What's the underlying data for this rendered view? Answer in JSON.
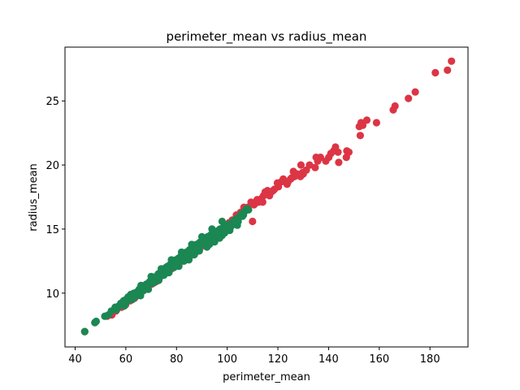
{
  "chart_data": {
    "type": "scatter",
    "title": "perimeter_mean vs radius_mean",
    "xlabel": "perimeter_mean",
    "ylabel": "radius_mean",
    "xlim": [
      36,
      195
    ],
    "ylim": [
      5.8,
      29.2
    ],
    "xticks": [
      40,
      60,
      80,
      100,
      120,
      140,
      160,
      180
    ],
    "yticks": [
      10,
      15,
      20,
      25
    ],
    "grid": false,
    "legend": "none",
    "colors": {
      "benign": "#1b8753",
      "malignant": "#dc3545"
    },
    "series": [
      {
        "color_key": "malignant",
        "points": [
          [
            188.5,
            28.1
          ],
          [
            186.9,
            27.4
          ],
          [
            182.1,
            27.2
          ],
          [
            174.2,
            25.7
          ],
          [
            171.5,
            25.2
          ],
          [
            166.2,
            24.6
          ],
          [
            165.5,
            24.3
          ],
          [
            158.9,
            23.3
          ],
          [
            155.1,
            23.5
          ],
          [
            152.8,
            23.3
          ],
          [
            152.1,
            23.0
          ],
          [
            153.5,
            23.1
          ],
          [
            152.5,
            22.3
          ],
          [
            147.2,
            21.1
          ],
          [
            147.0,
            20.6
          ],
          [
            143.7,
            21.0
          ],
          [
            142.0,
            21.1
          ],
          [
            140.9,
            20.9
          ],
          [
            142.7,
            21.4
          ],
          [
            140.1,
            20.6
          ],
          [
            138.9,
            20.3
          ],
          [
            136.8,
            20.6
          ],
          [
            135.7,
            20.3
          ],
          [
            134.7,
            19.8
          ],
          [
            135.1,
            20.6
          ],
          [
            132.5,
            20.0
          ],
          [
            131.2,
            19.6
          ],
          [
            130.0,
            19.3
          ],
          [
            129.7,
            19.4
          ],
          [
            128.9,
            19.1
          ],
          [
            127.6,
            19.3
          ],
          [
            126.6,
            19.1
          ],
          [
            125.5,
            19.0
          ],
          [
            125.0,
            18.9
          ],
          [
            124.0,
            18.7
          ],
          [
            123.6,
            18.5
          ],
          [
            122.1,
            18.9
          ],
          [
            121.4,
            18.7
          ],
          [
            120.2,
            18.3
          ],
          [
            119.8,
            18.6
          ],
          [
            118.6,
            18.1
          ],
          [
            117.4,
            17.9
          ],
          [
            116.7,
            17.6
          ],
          [
            115.9,
            18.0
          ],
          [
            115.0,
            17.9
          ],
          [
            114.3,
            17.6
          ],
          [
            113.6,
            17.4
          ],
          [
            112.4,
            17.1
          ],
          [
            111.8,
            17.3
          ],
          [
            111.0,
            17.0
          ],
          [
            110.6,
            16.9
          ],
          [
            109.4,
            17.1
          ],
          [
            108.2,
            16.7
          ],
          [
            107.3,
            16.5
          ],
          [
            106.6,
            16.7
          ],
          [
            105.3,
            16.3
          ],
          [
            104.9,
            16.0
          ],
          [
            103.6,
            16.1
          ],
          [
            110.0,
            15.6
          ],
          [
            144.0,
            20.2
          ],
          [
            148.0,
            21.0
          ],
          [
            129.1,
            20.0
          ],
          [
            126.1,
            19.5
          ],
          [
            118.1,
            18.0
          ],
          [
            114.0,
            17.1
          ],
          [
            102.0,
            15.7
          ],
          [
            100.8,
            15.5
          ],
          [
            99.3,
            15.3
          ],
          [
            97.6,
            14.9
          ],
          [
            96.2,
            14.8
          ],
          [
            94.7,
            14.5
          ],
          [
            93.9,
            14.2
          ],
          [
            92.8,
            14.0
          ],
          [
            91.4,
            13.9
          ],
          [
            90.2,
            13.7
          ],
          [
            89.2,
            13.5
          ],
          [
            88.6,
            13.6
          ],
          [
            87.7,
            13.2
          ],
          [
            86.6,
            13.1
          ],
          [
            85.3,
            12.9
          ],
          [
            84.1,
            12.8
          ],
          [
            82.5,
            12.5
          ],
          [
            81.2,
            12.4
          ],
          [
            80.0,
            12.2
          ],
          [
            78.1,
            11.9
          ],
          [
            76.4,
            11.6
          ],
          [
            75.0,
            11.5
          ],
          [
            73.3,
            11.2
          ],
          [
            71.9,
            10.9
          ],
          [
            70.2,
            10.7
          ],
          [
            68.5,
            10.4
          ],
          [
            66.9,
            10.2
          ],
          [
            65.0,
            9.9
          ],
          [
            63.4,
            9.6
          ],
          [
            61.7,
            9.4
          ],
          [
            59.9,
            9.1
          ],
          [
            58.3,
            8.9
          ],
          [
            56.1,
            8.6
          ],
          [
            54.5,
            8.3
          ],
          [
            52.6,
            8.2
          ],
          [
            47.8,
            7.7
          ],
          [
            43.8,
            7.0
          ]
        ]
      },
      {
        "color_key": "benign",
        "points": [
          [
            43.8,
            7.0
          ],
          [
            47.8,
            7.7
          ],
          [
            48.3,
            7.8
          ],
          [
            51.7,
            8.2
          ],
          [
            53.1,
            8.3
          ],
          [
            54.3,
            8.6
          ],
          [
            55.8,
            8.9
          ],
          [
            56.4,
            8.7
          ],
          [
            57.3,
            9.0
          ],
          [
            58.3,
            9.1
          ],
          [
            59.1,
            9.4
          ],
          [
            59.4,
            9.0
          ],
          [
            60.3,
            9.3
          ],
          [
            60.9,
            9.7
          ],
          [
            61.6,
            9.6
          ],
          [
            62.2,
            9.8
          ],
          [
            62.5,
            9.5
          ],
          [
            63.2,
            10.0
          ],
          [
            63.8,
            9.9
          ],
          [
            64.4,
            10.1
          ],
          [
            64.7,
            9.8
          ],
          [
            65.3,
            10.3
          ],
          [
            65.9,
            10.2
          ],
          [
            66.5,
            10.4
          ],
          [
            67.0,
            10.3
          ],
          [
            67.4,
            10.6
          ],
          [
            68.1,
            10.7
          ],
          [
            68.5,
            10.5
          ],
          [
            69.0,
            10.8
          ],
          [
            69.4,
            10.9
          ],
          [
            70.0,
            11.0
          ],
          [
            70.5,
            10.8
          ],
          [
            71.0,
            11.2
          ],
          [
            71.4,
            11.1
          ],
          [
            71.9,
            11.3
          ],
          [
            72.3,
            11.1
          ],
          [
            72.8,
            11.5
          ],
          [
            73.2,
            11.4
          ],
          [
            73.6,
            11.6
          ],
          [
            74.0,
            11.7
          ],
          [
            74.4,
            11.5
          ],
          [
            74.9,
            11.8
          ],
          [
            75.3,
            11.7
          ],
          [
            75.8,
            12.0
          ],
          [
            76.1,
            11.9
          ],
          [
            76.5,
            12.1
          ],
          [
            76.9,
            12.0
          ],
          [
            77.4,
            12.2
          ],
          [
            77.8,
            12.3
          ],
          [
            78.1,
            12.1
          ],
          [
            78.5,
            12.4
          ],
          [
            78.9,
            12.3
          ],
          [
            79.4,
            12.5
          ],
          [
            79.8,
            12.6
          ],
          [
            80.2,
            12.4
          ],
          [
            80.6,
            12.7
          ],
          [
            81.0,
            12.6
          ],
          [
            81.4,
            12.8
          ],
          [
            81.8,
            12.9
          ],
          [
            82.2,
            12.7
          ],
          [
            82.6,
            13.0
          ],
          [
            83.0,
            12.9
          ],
          [
            83.4,
            13.1
          ],
          [
            83.9,
            13.2
          ],
          [
            84.3,
            13.0
          ],
          [
            84.8,
            13.3
          ],
          [
            85.2,
            13.4
          ],
          [
            85.7,
            13.2
          ],
          [
            86.1,
            13.5
          ],
          [
            86.6,
            13.6
          ],
          [
            87.0,
            13.4
          ],
          [
            87.5,
            13.7
          ],
          [
            87.9,
            13.8
          ],
          [
            88.4,
            13.6
          ],
          [
            88.9,
            13.9
          ],
          [
            89.4,
            14.0
          ],
          [
            89.9,
            13.8
          ],
          [
            90.4,
            14.1
          ],
          [
            90.8,
            14.2
          ],
          [
            91.3,
            14.0
          ],
          [
            91.8,
            14.3
          ],
          [
            92.3,
            14.4
          ],
          [
            92.8,
            14.2
          ],
          [
            93.3,
            14.5
          ],
          [
            93.8,
            14.6
          ],
          [
            94.4,
            14.4
          ],
          [
            94.9,
            14.7
          ],
          [
            95.5,
            14.8
          ],
          [
            96.0,
            14.6
          ],
          [
            96.6,
            14.9
          ],
          [
            97.2,
            15.0
          ],
          [
            97.8,
            14.8
          ],
          [
            98.4,
            15.1
          ],
          [
            99.0,
            15.2
          ],
          [
            99.6,
            15.0
          ],
          [
            100.2,
            15.3
          ],
          [
            100.9,
            15.4
          ],
          [
            101.5,
            15.2
          ],
          [
            102.2,
            15.5
          ],
          [
            102.9,
            15.7
          ],
          [
            103.6,
            15.8
          ],
          [
            104.3,
            15.6
          ],
          [
            105.0,
            16.0
          ],
          [
            105.7,
            16.2
          ],
          [
            106.4,
            16.1
          ],
          [
            107.0,
            16.4
          ],
          [
            107.8,
            16.6
          ],
          [
            108.4,
            16.5
          ],
          [
            65.8,
            9.8
          ],
          [
            68.9,
            10.3
          ],
          [
            73.0,
            11.0
          ],
          [
            77.0,
            11.6
          ],
          [
            80.9,
            12.1
          ],
          [
            84.9,
            12.6
          ],
          [
            89.0,
            13.3
          ],
          [
            92.0,
            13.6
          ],
          [
            95.1,
            14.2
          ],
          [
            98.0,
            14.5
          ],
          [
            101.0,
            14.9
          ],
          [
            104.0,
            15.3
          ],
          [
            62.0,
            9.9
          ],
          [
            66.0,
            10.6
          ],
          [
            70.0,
            11.3
          ],
          [
            74.0,
            11.9
          ],
          [
            78.0,
            12.6
          ],
          [
            82.0,
            13.2
          ],
          [
            86.0,
            13.8
          ],
          [
            90.0,
            14.4
          ],
          [
            94.0,
            15.0
          ],
          [
            98.0,
            15.6
          ],
          [
            58.0,
            9.2
          ],
          [
            60.0,
            9.5
          ],
          [
            64.0,
            10.0
          ],
          [
            68.0,
            10.6
          ],
          [
            72.0,
            11.2
          ],
          [
            76.0,
            11.8
          ],
          [
            80.0,
            12.4
          ],
          [
            84.0,
            13.0
          ],
          [
            88.0,
            13.6
          ],
          [
            92.0,
            14.1
          ],
          [
            96.0,
            14.7
          ],
          [
            100.0,
            15.2
          ],
          [
            103.0,
            15.6
          ],
          [
            106.0,
            16.0
          ],
          [
            99.0,
            14.7
          ],
          [
            97.0,
            14.3
          ],
          [
            93.0,
            13.8
          ],
          [
            87.0,
            13.0
          ],
          [
            83.0,
            12.5
          ],
          [
            79.0,
            12.0
          ],
          [
            75.0,
            11.4
          ],
          [
            71.0,
            10.8
          ],
          [
            67.0,
            10.2
          ],
          [
            63.0,
            9.6
          ],
          [
            95.0,
            14.0
          ]
        ]
      }
    ]
  }
}
